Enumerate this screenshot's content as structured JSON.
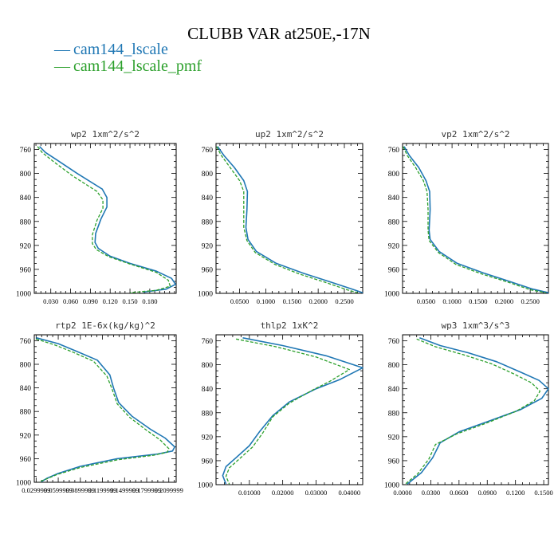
{
  "title": "CLUBB VAR at250E,-17N",
  "legend": [
    {
      "label": "cam144_lscale",
      "color": "#1f77b4"
    },
    {
      "label": "cam144_lscale_pmf",
      "color": "#2ca02c"
    }
  ],
  "chart_data": [
    {
      "type": "line",
      "title": "wp2   1xm^2/s^2",
      "xlim": [
        0.005,
        0.22
      ],
      "ylim": [
        750,
        1000
      ],
      "y_ticks": [
        760,
        800,
        840,
        880,
        920,
        960,
        1000
      ],
      "x_ticks": [
        0.03,
        0.06,
        0.09,
        0.12,
        0.15,
        0.18
      ],
      "x_tick_labels": [
        "0.030",
        "0.060",
        "0.090",
        "0.120",
        "0.150",
        "0.180"
      ],
      "series": [
        {
          "color": "#1f77b4",
          "dashed": false,
          "points": [
            [
              0.013,
              755
            ],
            [
              0.022,
              765
            ],
            [
              0.04,
              778
            ],
            [
              0.07,
              800
            ],
            [
              0.108,
              826
            ],
            [
              0.115,
              840
            ],
            [
              0.115,
              856
            ],
            [
              0.106,
              876
            ],
            [
              0.098,
              900
            ],
            [
              0.097,
              915
            ],
            [
              0.102,
              925
            ],
            [
              0.12,
              938
            ],
            [
              0.15,
              950
            ],
            [
              0.19,
              963
            ],
            [
              0.213,
              975
            ],
            [
              0.219,
              985
            ],
            [
              0.205,
              993
            ],
            [
              0.17,
              998
            ]
          ]
        },
        {
          "color": "#2ca02c",
          "dashed": true,
          "points": [
            [
              0.01,
              755
            ],
            [
              0.017,
              765
            ],
            [
              0.034,
              780
            ],
            [
              0.063,
              804
            ],
            [
              0.1,
              830
            ],
            [
              0.109,
              844
            ],
            [
              0.109,
              858
            ],
            [
              0.1,
              878
            ],
            [
              0.093,
              902
            ],
            [
              0.093,
              917
            ],
            [
              0.099,
              927
            ],
            [
              0.118,
              939
            ],
            [
              0.15,
              951
            ],
            [
              0.19,
              965
            ],
            [
              0.208,
              978
            ],
            [
              0.211,
              988
            ],
            [
              0.19,
              995
            ],
            [
              0.15,
              999
            ]
          ]
        }
      ]
    },
    {
      "type": "line",
      "title": "up2   1xm^2/s^2",
      "xlim": [
        0.005,
        0.285
      ],
      "ylim": [
        750,
        1000
      ],
      "y_ticks": [
        760,
        800,
        840,
        880,
        920,
        960,
        1000
      ],
      "x_ticks": [
        0.05,
        0.1,
        0.15,
        0.2,
        0.25
      ],
      "x_tick_labels": [
        "0.0500",
        "0.1000",
        "0.1500",
        "0.2000",
        "0.2500"
      ],
      "series": [
        {
          "color": "#1f77b4",
          "dashed": false,
          "points": [
            [
              0.008,
              755
            ],
            [
              0.02,
              770
            ],
            [
              0.04,
              790
            ],
            [
              0.058,
              812
            ],
            [
              0.065,
              830
            ],
            [
              0.064,
              860
            ],
            [
              0.062,
              890
            ],
            [
              0.066,
              910
            ],
            [
              0.082,
              930
            ],
            [
              0.12,
              950
            ],
            [
              0.17,
              966
            ],
            [
              0.22,
              980
            ],
            [
              0.265,
              993
            ],
            [
              0.285,
              999
            ]
          ]
        },
        {
          "color": "#2ca02c",
          "dashed": true,
          "points": [
            [
              0.006,
              755
            ],
            [
              0.015,
              770
            ],
            [
              0.032,
              790
            ],
            [
              0.05,
              812
            ],
            [
              0.058,
              830
            ],
            [
              0.058,
              860
            ],
            [
              0.058,
              890
            ],
            [
              0.064,
              912
            ],
            [
              0.08,
              932
            ],
            [
              0.118,
              952
            ],
            [
              0.165,
              968
            ],
            [
              0.215,
              982
            ],
            [
              0.255,
              994
            ],
            [
              0.275,
              999
            ]
          ]
        }
      ]
    },
    {
      "type": "line",
      "title": "vp2   1xm^2/s^2",
      "xlim": [
        0.005,
        0.285
      ],
      "ylim": [
        750,
        1000
      ],
      "y_ticks": [
        760,
        800,
        840,
        880,
        920,
        960,
        1000
      ],
      "x_ticks": [
        0.05,
        0.1,
        0.15,
        0.2,
        0.25
      ],
      "x_tick_labels": [
        "0.0500",
        "0.1000",
        "0.1500",
        "0.2000",
        "0.2500"
      ],
      "series": [
        {
          "color": "#1f77b4",
          "dashed": false,
          "points": [
            [
              0.008,
              755
            ],
            [
              0.018,
              770
            ],
            [
              0.036,
              790
            ],
            [
              0.05,
              812
            ],
            [
              0.057,
              830
            ],
            [
              0.058,
              860
            ],
            [
              0.056,
              895
            ],
            [
              0.058,
              910
            ],
            [
              0.075,
              930
            ],
            [
              0.11,
              950
            ],
            [
              0.16,
              966
            ],
            [
              0.21,
              980
            ],
            [
              0.255,
              993
            ],
            [
              0.285,
              999
            ]
          ]
        },
        {
          "color": "#2ca02c",
          "dashed": true,
          "points": [
            [
              0.006,
              755
            ],
            [
              0.014,
              770
            ],
            [
              0.03,
              790
            ],
            [
              0.045,
              812
            ],
            [
              0.052,
              830
            ],
            [
              0.054,
              860
            ],
            [
              0.054,
              895
            ],
            [
              0.056,
              912
            ],
            [
              0.074,
              932
            ],
            [
              0.108,
              952
            ],
            [
              0.158,
              968
            ],
            [
              0.21,
              982
            ],
            [
              0.25,
              994
            ],
            [
              0.28,
              999
            ]
          ]
        }
      ]
    },
    {
      "type": "line",
      "title": "rtp2   1E-6x(kg/kg)^2",
      "xlim": [
        0.0275,
        0.22
      ],
      "ylim": [
        750,
        1000
      ],
      "y_ticks": [
        760,
        800,
        840,
        880,
        920,
        960,
        1000
      ],
      "x_ticks": [
        0.03,
        0.06,
        0.09,
        0.12,
        0.15,
        0.18,
        0.21
      ],
      "x_tick_labels": [
        "0.0299999",
        "0.0599999",
        "0.0899999",
        "0.1199999",
        "0.1499999",
        "0.1799999",
        "0.2099999"
      ],
      "series": [
        {
          "color": "#1f77b4",
          "dashed": false,
          "points": [
            [
              0.03,
              755
            ],
            [
              0.06,
              765
            ],
            [
              0.085,
              778
            ],
            [
              0.113,
              793
            ],
            [
              0.13,
              818
            ],
            [
              0.135,
              840
            ],
            [
              0.142,
              865
            ],
            [
              0.16,
              888
            ],
            [
              0.185,
              910
            ],
            [
              0.205,
              925
            ],
            [
              0.218,
              940
            ],
            [
              0.215,
              947
            ],
            [
              0.195,
              952
            ],
            [
              0.14,
              960
            ],
            [
              0.09,
              973
            ],
            [
              0.06,
              985
            ],
            [
              0.045,
              993
            ],
            [
              0.037,
              999
            ]
          ]
        },
        {
          "color": "#2ca02c",
          "dashed": true,
          "points": [
            [
              0.03,
              757
            ],
            [
              0.055,
              767
            ],
            [
              0.081,
              780
            ],
            [
              0.108,
              795
            ],
            [
              0.126,
              820
            ],
            [
              0.133,
              842
            ],
            [
              0.14,
              867
            ],
            [
              0.157,
              890
            ],
            [
              0.18,
              912
            ],
            [
              0.198,
              928
            ],
            [
              0.21,
              943
            ],
            [
              0.208,
              949
            ],
            [
              0.19,
              954
            ],
            [
              0.14,
              962
            ],
            [
              0.09,
              975
            ],
            [
              0.058,
              987
            ],
            [
              0.043,
              995
            ],
            [
              0.034,
              999
            ]
          ]
        }
      ]
    },
    {
      "type": "line",
      "title": "thlp2   1xK^2",
      "xlim": [
        0.0,
        0.044
      ],
      "ylim": [
        750,
        1000
      ],
      "y_ticks": [
        760,
        800,
        840,
        880,
        920,
        960,
        1000
      ],
      "x_ticks": [
        0.01,
        0.02,
        0.03,
        0.04
      ],
      "x_tick_labels": [
        "0.01000",
        "0.02000",
        "0.03000",
        "0.04000"
      ],
      "series": [
        {
          "color": "#1f77b4",
          "dashed": false,
          "points": [
            [
              0.008,
              755
            ],
            [
              0.02,
              768
            ],
            [
              0.033,
              785
            ],
            [
              0.044,
              805
            ],
            [
              0.037,
              825
            ],
            [
              0.03,
              840
            ],
            [
              0.022,
              862
            ],
            [
              0.017,
              885
            ],
            [
              0.013,
              912
            ],
            [
              0.01,
              935
            ],
            [
              0.006,
              955
            ],
            [
              0.003,
              970
            ],
            [
              0.002,
              985
            ],
            [
              0.003,
              999
            ]
          ]
        },
        {
          "color": "#2ca02c",
          "dashed": true,
          "points": [
            [
              0.006,
              757
            ],
            [
              0.018,
              770
            ],
            [
              0.03,
              787
            ],
            [
              0.04,
              808
            ],
            [
              0.034,
              828
            ],
            [
              0.029,
              842
            ],
            [
              0.022,
              864
            ],
            [
              0.017,
              887
            ],
            [
              0.014,
              914
            ],
            [
              0.011,
              937
            ],
            [
              0.007,
              957
            ],
            [
              0.004,
              972
            ],
            [
              0.003,
              986
            ],
            [
              0.004,
              999
            ]
          ]
        }
      ]
    },
    {
      "type": "line",
      "title": "wp3   1xm^3/s^3",
      "xlim": [
        0.0,
        0.155
      ],
      "ylim": [
        750,
        1000
      ],
      "y_ticks": [
        760,
        800,
        840,
        880,
        920,
        960,
        1000
      ],
      "x_ticks": [
        0.0,
        0.03,
        0.06,
        0.09,
        0.12,
        0.15
      ],
      "x_tick_labels": [
        "0.0000",
        "0.0300",
        "0.0600",
        "0.0900",
        "0.1200",
        "0.1500"
      ],
      "series": [
        {
          "color": "#1f77b4",
          "dashed": false,
          "points": [
            [
              0.018,
              755
            ],
            [
              0.04,
              768
            ],
            [
              0.07,
              780
            ],
            [
              0.1,
              795
            ],
            [
              0.125,
              812
            ],
            [
              0.145,
              826
            ],
            [
              0.155,
              840
            ],
            [
              0.148,
              856
            ],
            [
              0.125,
              875
            ],
            [
              0.09,
              895
            ],
            [
              0.06,
              912
            ],
            [
              0.04,
              930
            ],
            [
              0.032,
              955
            ],
            [
              0.02,
              980
            ],
            [
              0.005,
              999
            ]
          ]
        },
        {
          "color": "#2ca02c",
          "dashed": true,
          "points": [
            [
              0.015,
              757
            ],
            [
              0.035,
              770
            ],
            [
              0.064,
              783
            ],
            [
              0.094,
              798
            ],
            [
              0.118,
              815
            ],
            [
              0.137,
              830
            ],
            [
              0.146,
              844
            ],
            [
              0.14,
              860
            ],
            [
              0.12,
              878
            ],
            [
              0.088,
              898
            ],
            [
              0.058,
              915
            ],
            [
              0.035,
              933
            ],
            [
              0.028,
              957
            ],
            [
              0.016,
              982
            ],
            [
              0.003,
              999
            ]
          ]
        }
      ]
    }
  ]
}
